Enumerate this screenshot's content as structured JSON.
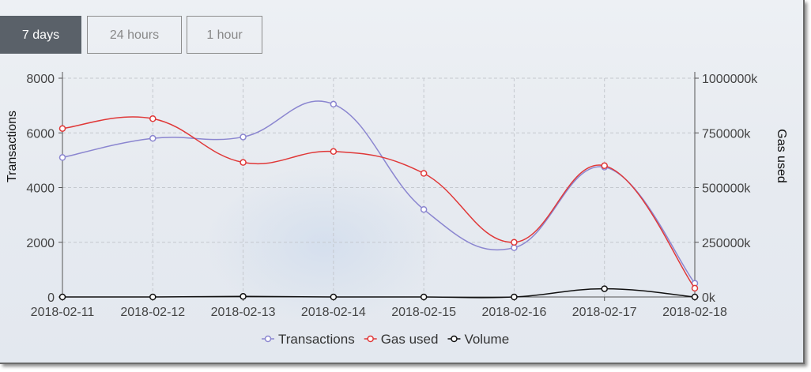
{
  "tabs": [
    {
      "label": "7 days",
      "active": true
    },
    {
      "label": "24 hours",
      "active": false
    },
    {
      "label": "1 hour",
      "active": false
    }
  ],
  "chart_data": {
    "type": "line",
    "smooth": true,
    "categories": [
      "2018-02-11",
      "2018-02-12",
      "2018-02-13",
      "2018-02-14",
      "2018-02-15",
      "2018-02-16",
      "2018-02-17",
      "2018-02-18"
    ],
    "ylabel_left": "Transactions",
    "ylabel_right": "Gas used",
    "ylim_left": [
      0,
      8000
    ],
    "ylim_right": [
      0,
      1000000
    ],
    "yticks_left": [
      "0",
      "2000",
      "4000",
      "6000",
      "8000"
    ],
    "yticks_right": [
      "0k",
      "250000k",
      "500000k",
      "750000k",
      "1000000k"
    ],
    "grid": true,
    "legend_position": "bottom-center",
    "series": [
      {
        "name": "Transactions",
        "axis": "left",
        "color": "#8b86d0",
        "values": [
          5100,
          5800,
          5850,
          7050,
          3200,
          1800,
          4750,
          500
        ]
      },
      {
        "name": "Gas used",
        "axis": "right",
        "color": "#e03838",
        "values": [
          770000,
          815000,
          615000,
          665000,
          565000,
          250000,
          600000,
          40000
        ]
      },
      {
        "name": "Volume",
        "axis": "left",
        "color": "#111111",
        "values": [
          0,
          0,
          20,
          0,
          0,
          0,
          300,
          0
        ]
      }
    ]
  }
}
